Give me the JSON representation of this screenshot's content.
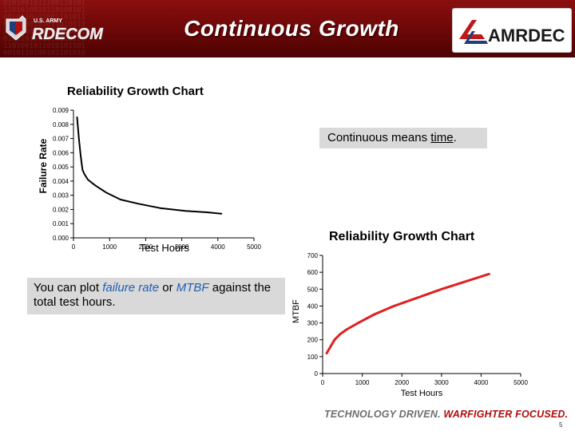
{
  "header": {
    "title": "Continuous Growth",
    "left_logo_top": "U.S. ARMY",
    "left_logo_main": "RDECOM",
    "right_logo_main": "AMRDEC",
    "brand_color": "#7a0a0a",
    "accent_color": "#d01c1c"
  },
  "failure_rate_panel": {
    "callout": {
      "prefix": "Continuous means ",
      "emphasis": "time",
      "suffix": "."
    }
  },
  "mtbf_panel": {
    "callout": {
      "part1": "You can plot ",
      "failure_rate": "failure rate",
      "part2": " or ",
      "mtbf": "MTBF",
      "part3": " against the total test hours."
    }
  },
  "chart_data": [
    {
      "type": "line",
      "title": "Reliability Growth Chart",
      "xlabel": "Test Hours",
      "ylabel": "Failure Rate",
      "xlim": [
        0,
        5000
      ],
      "ylim": [
        0,
        0.009
      ],
      "xticks": [
        "0",
        "1000",
        "2000",
        "3000",
        "4000",
        "5000"
      ],
      "yticks": [
        "0.000",
        "0.001",
        "0.002",
        "0.003",
        "0.004",
        "0.005",
        "0.006",
        "0.007",
        "0.008",
        "0.009"
      ],
      "line_color": "#000000",
      "series": [
        {
          "name": "Failure Rate",
          "x": [
            100,
            150,
            200,
            250,
            300,
            400,
            600,
            900,
            1300,
            1800,
            2400,
            3100,
            3700,
            4100
          ],
          "y": [
            0.0085,
            0.007,
            0.0058,
            0.0048,
            0.0045,
            0.0041,
            0.0037,
            0.0032,
            0.0027,
            0.0024,
            0.0021,
            0.0019,
            0.0018,
            0.0017
          ]
        }
      ]
    },
    {
      "type": "line",
      "title": "Reliability Growth Chart",
      "xlabel": "Test Hours",
      "ylabel": "MTBF",
      "xlim": [
        0,
        5000
      ],
      "ylim": [
        0,
        700
      ],
      "xticks": [
        "0",
        "1000",
        "2000",
        "3000",
        "4000",
        "5000"
      ],
      "yticks": [
        "0",
        "100",
        "200",
        "300",
        "400",
        "500",
        "600",
        "700"
      ],
      "line_color": "#e02020",
      "series": [
        {
          "name": "MTBF",
          "x": [
            100,
            200,
            300,
            450,
            600,
            900,
            1300,
            1800,
            2400,
            3000,
            3600,
            4200
          ],
          "y": [
            120,
            160,
            200,
            235,
            260,
            300,
            350,
            400,
            450,
            500,
            545,
            590
          ]
        }
      ]
    }
  ],
  "footer": {
    "tagline_part1": "TECHNOLOGY DRIVEN.",
    "tagline_part2": " WARFIGHTER FOCUSED.",
    "page_number": "5"
  }
}
